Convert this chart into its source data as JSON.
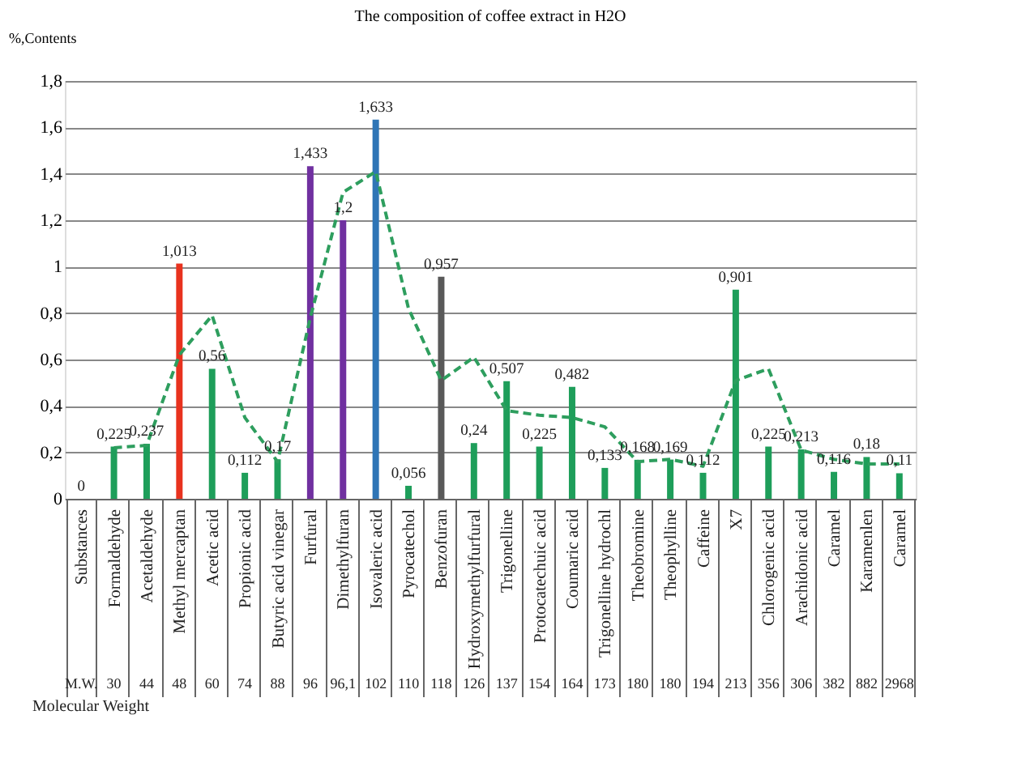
{
  "chart_data": {
    "type": "bar",
    "title": "The composition of coffee extract in H2O",
    "ylabel": "%,Contents",
    "categories": [
      "Substances",
      "Formaldehyde",
      "Acetaldehyde",
      "Methyl mercaptan",
      "Acetic acid",
      "Propionic acid",
      "Butyric acid vinegar",
      "Furfural",
      "Dimethylfuran",
      "Isovaleric acid",
      "Pyrocatechol",
      "Benzofuran",
      "Hydroxymethylfurfural",
      "Trigonelline",
      "Protocatechuic acid",
      "Coumaric acid",
      "Trigonelline hydrochl",
      "Theobromine",
      "Theophylline",
      "Caffeine",
      "X7",
      "Chlorogenic acid",
      "Arachidonic acid",
      "Caramel",
      "Karamenlen",
      "Caramel"
    ],
    "series": [
      {
        "values": [
          0,
          0.225,
          0.237,
          1.013,
          0.56,
          0.112,
          0.17,
          1.433,
          1.2,
          1.633,
          0.056,
          0.957,
          0.24,
          0.507,
          0.225,
          0.482,
          0.133,
          0.168,
          0.169,
          0.112,
          0.901,
          0.225,
          0.213,
          0.116,
          0.18,
          0.11
        ],
        "colors": [
          "#1e9e5a",
          "#1e9e5a",
          "#1e9e5a",
          "#e8321e",
          "#1e9e5a",
          "#1e9e5a",
          "#1e9e5a",
          "#7030a0",
          "#7030a0",
          "#2e75b6",
          "#1e9e5a",
          "#595959",
          "#1e9e5a",
          "#1e9e5a",
          "#1e9e5a",
          "#1e9e5a",
          "#1e9e5a",
          "#1e9e5a",
          "#1e9e5a",
          "#1e9e5a",
          "#1e9e5a",
          "#1e9e5a",
          "#1e9e5a",
          "#1e9e5a",
          "#1e9e5a",
          "#1e9e5a"
        ],
        "value_labels": [
          "0",
          "0,225",
          "0,237",
          "1,013",
          "0,56",
          "0,112",
          "0,17",
          "1,433",
          "1,2",
          "1,633",
          "0,056",
          "0,957",
          "0,24",
          "0,507",
          "0,225",
          "0,482",
          "0,133",
          "0,168",
          "0,169",
          "0,112",
          "0,901",
          "0,225",
          "0,213",
          "0,116",
          "0,18",
          "0,11"
        ]
      },
      {
        "type": "line",
        "color": "#2e9e5e",
        "line_style": "dashed",
        "values": [
          null,
          0.22,
          0.23,
          0.62,
          0.79,
          0.35,
          0.16,
          0.78,
          1.32,
          1.41,
          0.82,
          0.51,
          0.61,
          0.38,
          0.36,
          0.35,
          0.31,
          0.16,
          0.17,
          0.14,
          0.51,
          0.56,
          0.21,
          0.17,
          0.15,
          0.15
        ]
      }
    ],
    "ylim": [
      0,
      1.8
    ],
    "yticks": [
      0,
      {
        "value": 0.2,
        "label": "0,2"
      },
      {
        "value": 0.4,
        "label": "0,4"
      },
      {
        "value": 0.6,
        "label": "0,6"
      },
      {
        "value": 0.8,
        "label": "0,8"
      },
      1,
      {
        "value": 1.2,
        "label": "1,2"
      },
      {
        "value": 1.4,
        "label": "1,4"
      },
      {
        "value": 1.6,
        "label": "1,6"
      },
      {
        "value": 1.8,
        "label": "1,8"
      }
    ],
    "grid": "y",
    "annotations": [
      "M.W.",
      "30",
      "44",
      "48",
      "60",
      "74",
      "88",
      "96",
      "96,1",
      "102",
      "110",
      "118",
      "126",
      "137",
      "154",
      "164",
      "173",
      "180",
      "180",
      "194",
      "213",
      "356",
      "306",
      "382",
      "882",
      "2968",
      "Molecular Weight"
    ]
  }
}
